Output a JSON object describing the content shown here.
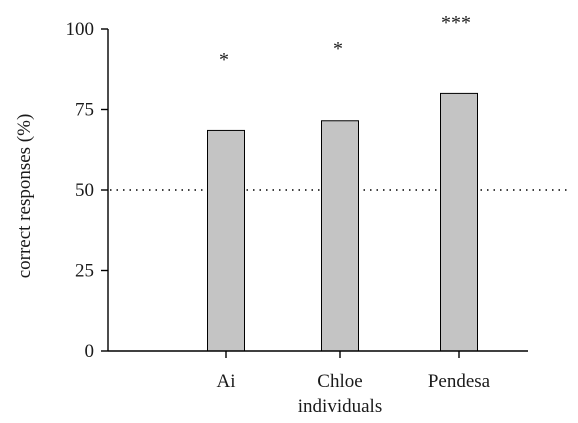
{
  "chart_data": {
    "type": "bar",
    "categories": [
      "Ai",
      "Chloe",
      "Pendesa"
    ],
    "values": [
      68.5,
      71.5,
      80
    ],
    "significance": [
      "*",
      "*",
      "***"
    ],
    "xlabel": "individuals",
    "ylabel": "correct responses (%)",
    "ylim": [
      0,
      100
    ],
    "yticks": [
      0,
      25,
      50,
      75,
      100
    ],
    "reference_line": 50,
    "bar_color": "#c4c4c4",
    "grid": false
  }
}
